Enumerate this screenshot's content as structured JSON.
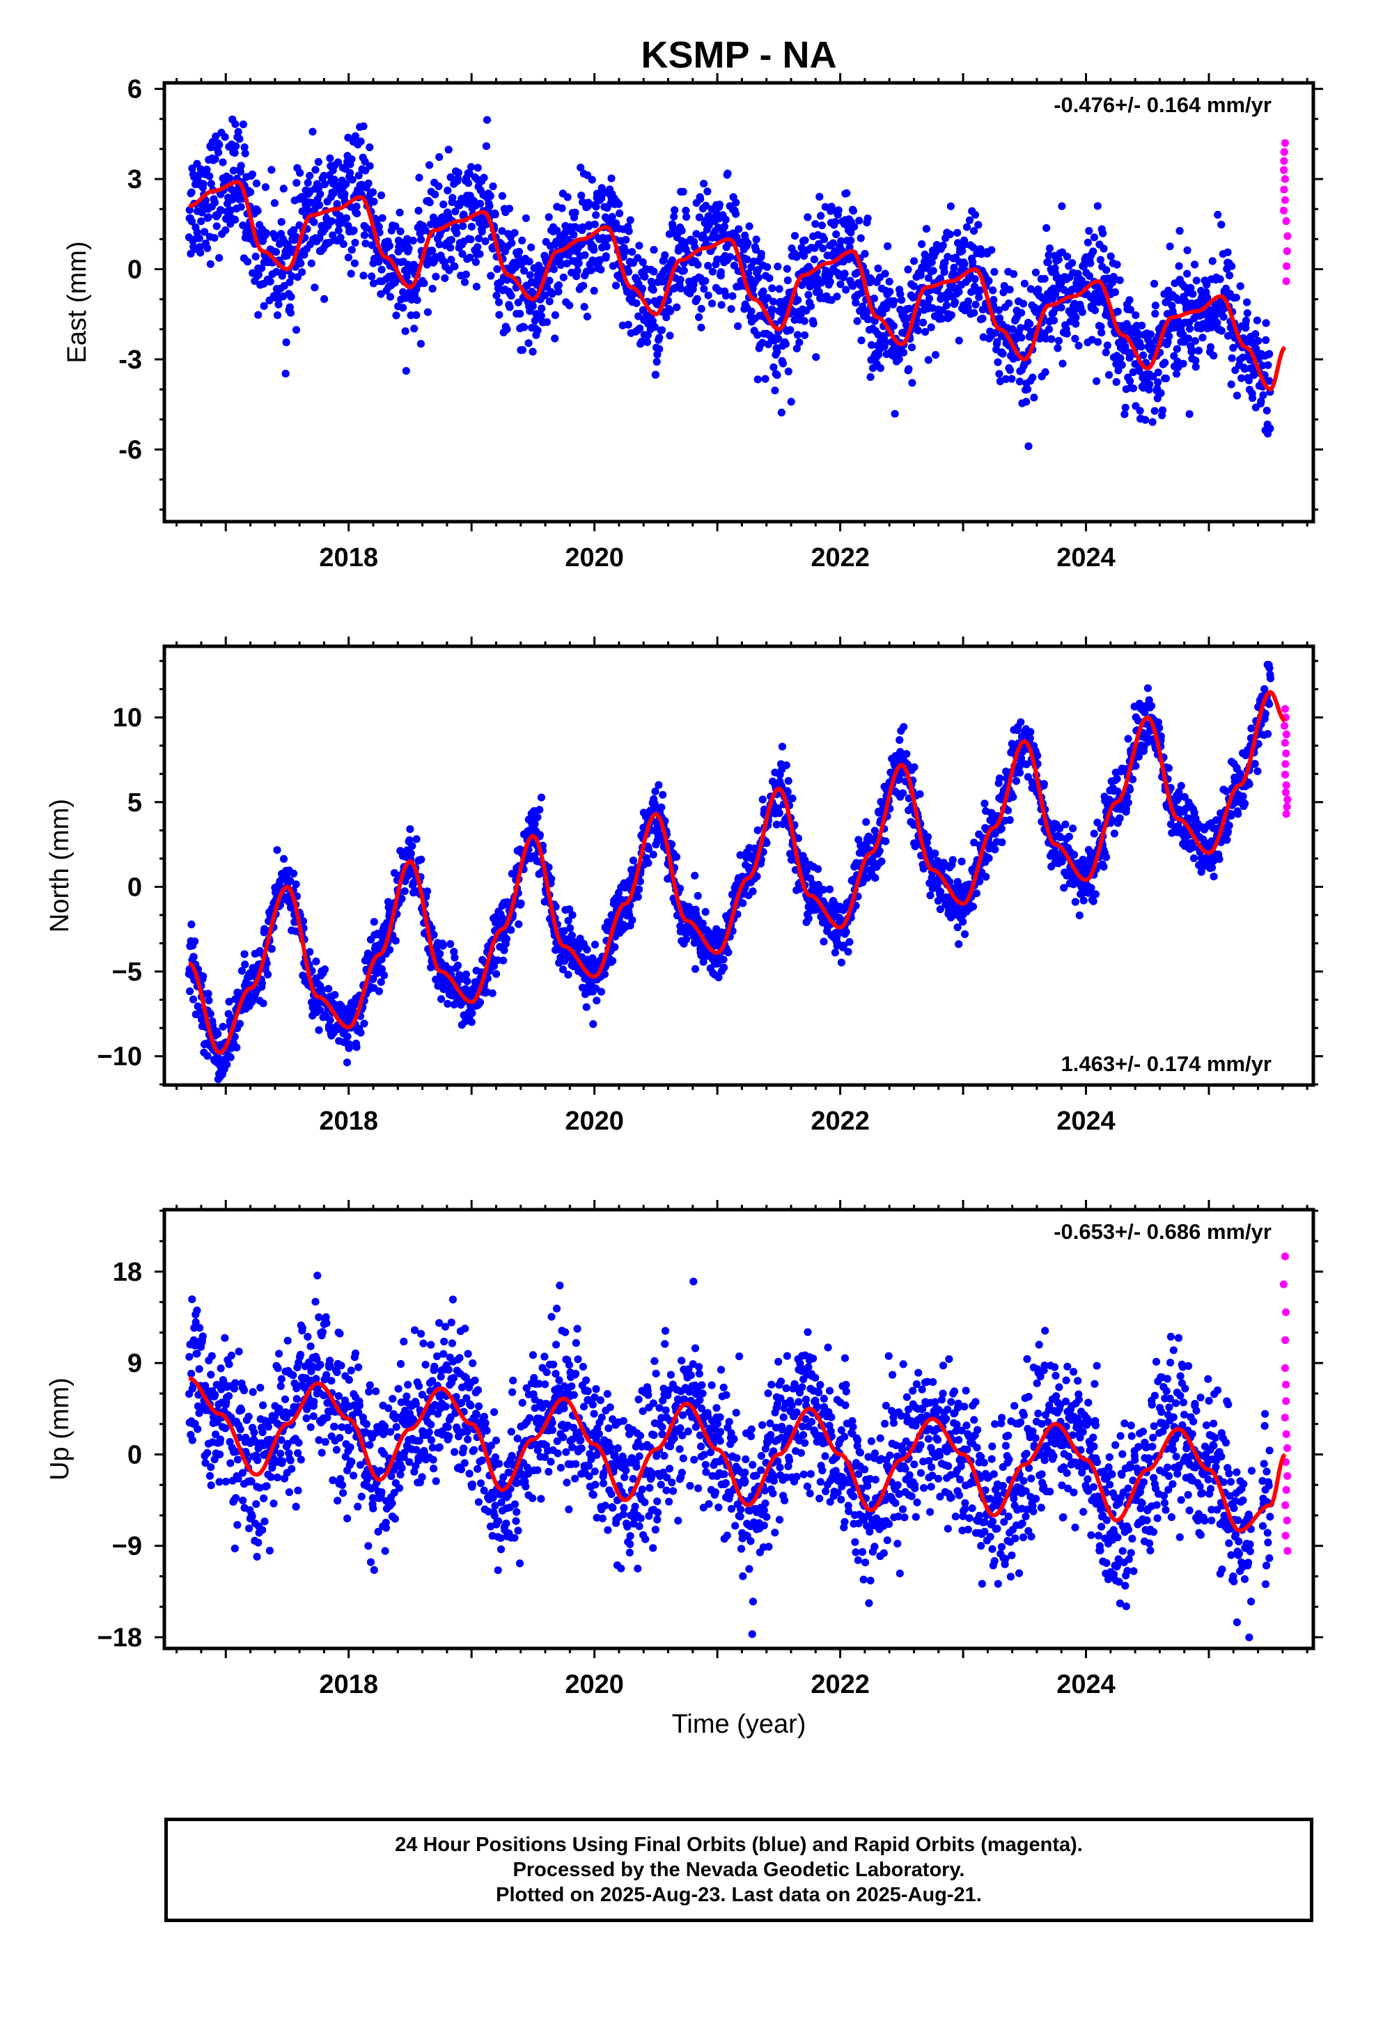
{
  "title": "KSMP - NA",
  "xlabel": "Time (year)",
  "footer": {
    "line1": "24 Hour Positions Using Final Orbits (blue) and Rapid Orbits (magenta).",
    "line2": "Processed by the Nevada Geodetic Laboratory.",
    "line3": "Plotted on 2025-Aug-23. Last data on 2025-Aug-21."
  },
  "colors": {
    "final": "#0000ff",
    "rapid": "#ff00ff",
    "model": "#ff0000",
    "frame": "#000000"
  },
  "chart_data": [
    {
      "type": "scatter",
      "panel": "east",
      "ylabel": "East (mm)",
      "rate": "-0.476+/- 0.164 mm/yr",
      "rate_position": "top-right",
      "xlim": [
        2016.5,
        2025.85
      ],
      "ylim": [
        -8.4,
        6.2
      ],
      "xticks": [
        2018,
        2020,
        2022,
        2024
      ],
      "yticks": [
        -6,
        -3,
        0,
        3,
        6
      ],
      "xticklabels": [
        "2018",
        "2020",
        "2022",
        "2024"
      ],
      "yticklabels": [
        "-6",
        "-3",
        "0",
        "3",
        "6"
      ],
      "grid": false,
      "series": [
        {
          "kind": "final",
          "x": [
            2016.7,
            2016.9,
            2017.1,
            2017.3,
            2017.5,
            2017.7,
            2017.9,
            2018.1,
            2018.3,
            2018.5,
            2018.7,
            2018.9,
            2019.1,
            2019.3,
            2019.5,
            2019.7,
            2019.9,
            2020.1,
            2020.3,
            2020.5,
            2020.7,
            2020.9,
            2021.1,
            2021.3,
            2021.5,
            2021.7,
            2021.9,
            2022.1,
            2022.3,
            2022.5,
            2022.7,
            2022.9,
            2023.1,
            2023.3,
            2023.5,
            2023.7,
            2023.9,
            2024.1,
            2024.3,
            2024.5,
            2024.7,
            2024.9,
            2025.1,
            2025.3,
            2025.5
          ],
          "y": [
            2.1,
            2.6,
            2.9,
            0.6,
            0.0,
            1.8,
            2.0,
            2.4,
            0.4,
            -0.6,
            1.3,
            1.6,
            1.9,
            -0.2,
            -1.0,
            0.6,
            1.0,
            1.4,
            -0.6,
            -1.5,
            0.3,
            0.7,
            1.0,
            -1.0,
            -2.0,
            -0.2,
            0.2,
            0.6,
            -1.6,
            -2.5,
            -0.6,
            -0.4,
            0.0,
            -2.0,
            -3.0,
            -1.2,
            -0.9,
            -0.4,
            -2.2,
            -3.3,
            -1.6,
            -1.4,
            -0.9,
            -2.6,
            -4.0
          ]
        },
        {
          "kind": "rapid",
          "x": [
            2025.62,
            2025.62,
            2025.63,
            2025.63
          ],
          "y": [
            4.2,
            3.0,
            1.6,
            -0.4
          ]
        },
        {
          "kind": "model",
          "name": "",
          "x": [
            2016.7,
            2016.9,
            2017.1,
            2017.3,
            2017.5,
            2017.7,
            2017.9,
            2018.1,
            2018.3,
            2018.5,
            2018.7,
            2018.9,
            2019.1,
            2019.3,
            2019.5,
            2019.7,
            2019.9,
            2020.1,
            2020.3,
            2020.5,
            2020.7,
            2020.9,
            2021.1,
            2021.3,
            2021.5,
            2021.7,
            2021.9,
            2022.1,
            2022.3,
            2022.5,
            2022.7,
            2022.9,
            2023.1,
            2023.3,
            2023.5,
            2023.7,
            2023.9,
            2024.1,
            2024.3,
            2024.5,
            2024.7,
            2024.9,
            2025.1,
            2025.3,
            2025.5,
            2025.62
          ],
          "y": [
            2.1,
            2.6,
            2.9,
            0.6,
            0.0,
            1.8,
            2.0,
            2.4,
            0.4,
            -0.6,
            1.3,
            1.6,
            1.9,
            -0.2,
            -1.0,
            0.6,
            1.0,
            1.4,
            -0.6,
            -1.5,
            0.3,
            0.7,
            1.0,
            -1.0,
            -2.0,
            -0.2,
            0.2,
            0.6,
            -1.6,
            -2.5,
            -0.6,
            -0.4,
            0.0,
            -2.0,
            -3.0,
            -1.2,
            -0.9,
            -0.4,
            -2.2,
            -3.3,
            -1.6,
            -1.4,
            -0.9,
            -2.6,
            -4.0,
            -2.6
          ]
        }
      ]
    },
    {
      "type": "scatter",
      "panel": "north",
      "ylabel": "North (mm)",
      "rate": "1.463+/- 0.174 mm/yr",
      "rate_position": "bottom-right",
      "xlim": [
        2016.5,
        2025.85
      ],
      "ylim": [
        -11.7,
        14.2
      ],
      "xticks": [
        2018,
        2020,
        2022,
        2024
      ],
      "yticks": [
        -10,
        -5,
        0,
        5,
        10
      ],
      "xticklabels": [
        "2018",
        "2020",
        "2022",
        "2024"
      ],
      "yticklabels": [
        "−10",
        "−5",
        "0",
        "5",
        "10"
      ],
      "grid": false,
      "series": [
        {
          "kind": "final",
          "x": [
            2016.7,
            2016.95,
            2017.2,
            2017.5,
            2017.75,
            2018.0,
            2018.25,
            2018.5,
            2018.75,
            2019.0,
            2019.25,
            2019.5,
            2019.75,
            2020.0,
            2020.25,
            2020.5,
            2020.75,
            2021.0,
            2021.25,
            2021.5,
            2021.75,
            2022.0,
            2022.25,
            2022.5,
            2022.75,
            2023.0,
            2023.25,
            2023.5,
            2023.75,
            2024.0,
            2024.25,
            2024.5,
            2024.75,
            2025.0,
            2025.25,
            2025.5
          ],
          "y": [
            -4.5,
            -9.8,
            -6.0,
            0.0,
            -6.5,
            -8.3,
            -4.0,
            1.5,
            -5.0,
            -6.8,
            -2.5,
            3.0,
            -3.5,
            -5.3,
            -1.0,
            4.3,
            -2.0,
            -3.9,
            0.5,
            5.8,
            -0.5,
            -2.4,
            2.0,
            7.2,
            1.0,
            -1.0,
            3.5,
            8.6,
            2.5,
            0.4,
            5.0,
            10.0,
            4.0,
            2.0,
            6.0,
            11.5
          ]
        },
        {
          "kind": "rapid",
          "x": [
            2025.62,
            2025.62,
            2025.63,
            2025.63
          ],
          "y": [
            10.5,
            8.5,
            6.0,
            4.3
          ]
        },
        {
          "kind": "model",
          "name": "",
          "x": [
            2016.7,
            2016.95,
            2017.2,
            2017.5,
            2017.75,
            2018.0,
            2018.25,
            2018.5,
            2018.75,
            2019.0,
            2019.25,
            2019.5,
            2019.75,
            2020.0,
            2020.25,
            2020.5,
            2020.75,
            2021.0,
            2021.25,
            2021.5,
            2021.75,
            2022.0,
            2022.25,
            2022.5,
            2022.75,
            2023.0,
            2023.25,
            2023.5,
            2023.75,
            2024.0,
            2024.25,
            2024.5,
            2024.75,
            2025.0,
            2025.25,
            2025.5,
            2025.62
          ],
          "y": [
            -4.5,
            -9.8,
            -6.0,
            0.0,
            -6.5,
            -8.3,
            -4.0,
            1.5,
            -5.0,
            -6.8,
            -2.5,
            3.0,
            -3.5,
            -5.3,
            -1.0,
            4.3,
            -2.0,
            -3.9,
            0.5,
            5.8,
            -0.5,
            -2.4,
            2.0,
            7.2,
            1.0,
            -1.0,
            3.5,
            8.6,
            2.5,
            0.4,
            5.0,
            10.0,
            4.0,
            2.0,
            6.0,
            11.5,
            9.8
          ]
        }
      ]
    },
    {
      "type": "scatter",
      "panel": "up",
      "ylabel": "Up (mm)",
      "rate": "-0.653+/- 0.686 mm/yr",
      "rate_position": "top-right",
      "xlim": [
        2016.5,
        2025.85
      ],
      "ylim": [
        -19.1,
        24.1
      ],
      "xticks": [
        2018,
        2020,
        2022,
        2024
      ],
      "yticks": [
        -18,
        -9,
        0,
        9,
        18
      ],
      "xticklabels": [
        "2018",
        "2020",
        "2022",
        "2024"
      ],
      "yticklabels": [
        "−18",
        "−9",
        "0",
        "9",
        "18"
      ],
      "grid": false,
      "series": [
        {
          "kind": "final",
          "x": [
            2016.7,
            2016.95,
            2017.25,
            2017.5,
            2017.75,
            2018.0,
            2018.25,
            2018.5,
            2018.75,
            2019.0,
            2019.25,
            2019.5,
            2019.75,
            2020.0,
            2020.25,
            2020.5,
            2020.75,
            2021.0,
            2021.25,
            2021.5,
            2021.75,
            2022.0,
            2022.25,
            2022.5,
            2022.75,
            2023.0,
            2023.25,
            2023.5,
            2023.75,
            2024.0,
            2024.25,
            2024.5,
            2024.75,
            2025.0,
            2025.25,
            2025.5
          ],
          "y": [
            7.5,
            4.0,
            -2.0,
            3.0,
            7.0,
            3.5,
            -2.5,
            2.5,
            6.5,
            3.0,
            -3.5,
            1.5,
            5.5,
            1.0,
            -4.5,
            0.5,
            5.0,
            0.5,
            -5.0,
            0.0,
            4.5,
            0.0,
            -5.5,
            -0.5,
            3.5,
            0.0,
            -6.0,
            -1.0,
            3.0,
            -0.5,
            -6.5,
            -1.5,
            2.5,
            -1.5,
            -7.5,
            -5.0
          ]
        },
        {
          "kind": "rapid",
          "x": [
            2025.62,
            2025.62,
            2025.63,
            2025.63,
            2025.64
          ],
          "y": [
            19.5,
            8.5,
            2.0,
            -3.5,
            -9.5
          ]
        },
        {
          "kind": "model",
          "name": "",
          "x": [
            2016.7,
            2016.95,
            2017.25,
            2017.5,
            2017.75,
            2018.0,
            2018.25,
            2018.5,
            2018.75,
            2019.0,
            2019.25,
            2019.5,
            2019.75,
            2020.0,
            2020.25,
            2020.5,
            2020.75,
            2021.0,
            2021.25,
            2021.5,
            2021.75,
            2022.0,
            2022.25,
            2022.5,
            2022.75,
            2023.0,
            2023.25,
            2023.5,
            2023.75,
            2024.0,
            2024.25,
            2024.5,
            2024.75,
            2025.0,
            2025.25,
            2025.5,
            2025.62
          ],
          "y": [
            7.5,
            4.0,
            -2.0,
            3.0,
            7.0,
            3.5,
            -2.5,
            2.5,
            6.5,
            3.0,
            -3.5,
            1.5,
            5.5,
            1.0,
            -4.5,
            0.5,
            5.0,
            0.5,
            -5.0,
            0.0,
            4.5,
            0.0,
            -5.5,
            -0.5,
            3.5,
            0.0,
            -6.0,
            -1.0,
            3.0,
            -0.5,
            -6.5,
            -1.5,
            2.5,
            -1.5,
            -7.5,
            -5.0,
            0.0
          ]
        }
      ]
    }
  ]
}
